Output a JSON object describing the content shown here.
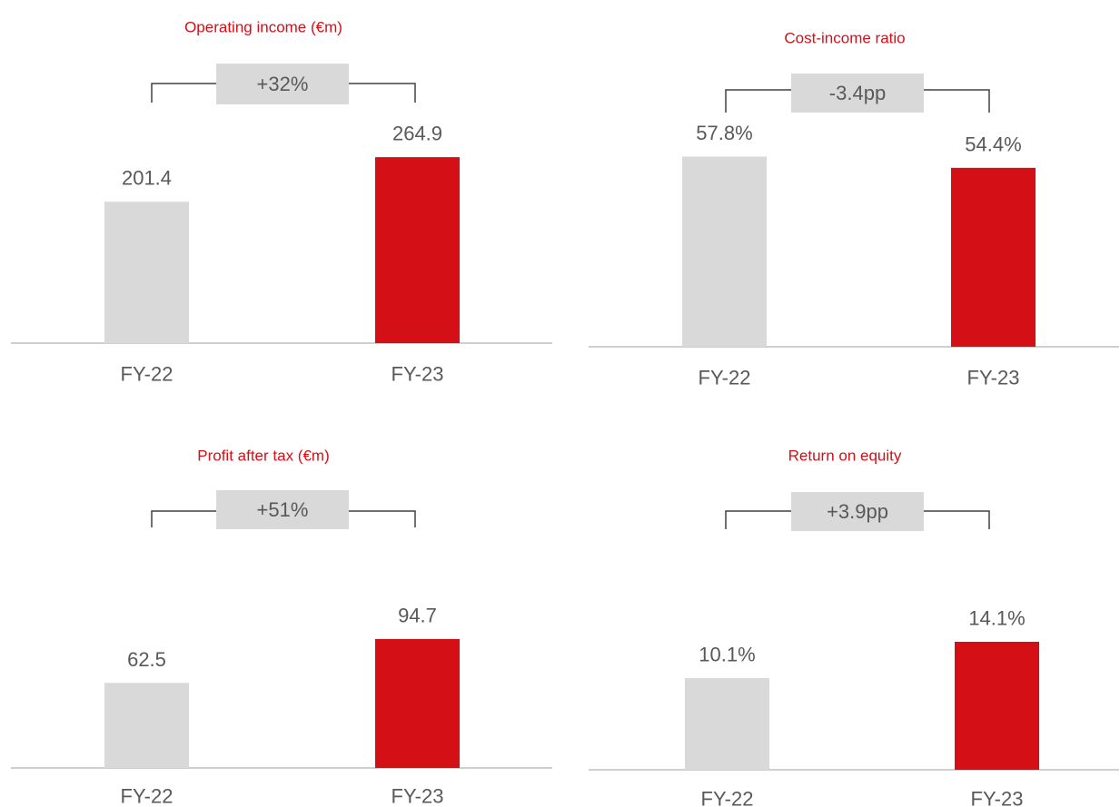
{
  "colors": {
    "prior_bar": "#d9d9d9",
    "current_bar": "#d50f16",
    "title": "#d50f16",
    "label": "#595959",
    "axis": "#bfbfbf",
    "bracket": "#404040",
    "change_box": "#d9d9d9"
  },
  "chart_data": [
    {
      "type": "bar",
      "title": "Operating income (€m)",
      "categories": [
        "FY-22",
        "FY-23"
      ],
      "values": [
        201.4,
        264.9
      ],
      "value_labels": [
        "201.4",
        "264.9"
      ],
      "change_label": "+32%",
      "ylim": [
        0,
        300
      ],
      "grid": false,
      "legend": "none"
    },
    {
      "type": "bar",
      "title": "Cost-income ratio",
      "categories": [
        "FY-22",
        "FY-23"
      ],
      "values": [
        57.8,
        54.4
      ],
      "value_labels": [
        "57.8%",
        "54.4%"
      ],
      "change_label": "-3.4pp",
      "ylim": [
        0,
        76
      ],
      "grid": false,
      "legend": "none"
    },
    {
      "type": "bar",
      "title": "Profit after tax (€m)",
      "categories": [
        "FY-22",
        "FY-23"
      ],
      "values": [
        62.5,
        94.7
      ],
      "value_labels": [
        "62.5",
        "94.7"
      ],
      "change_label": "+51%",
      "ylim": [
        0,
        129
      ],
      "grid": false,
      "legend": "none"
    },
    {
      "type": "bar",
      "title": "Return on equity",
      "categories": [
        "FY-22",
        "FY-23"
      ],
      "values": [
        10.1,
        14.1
      ],
      "value_labels": [
        "10.1%",
        "14.1%"
      ],
      "change_label": "+3.9pp",
      "ylim": [
        0,
        20.4
      ],
      "grid": false,
      "legend": "none"
    }
  ]
}
